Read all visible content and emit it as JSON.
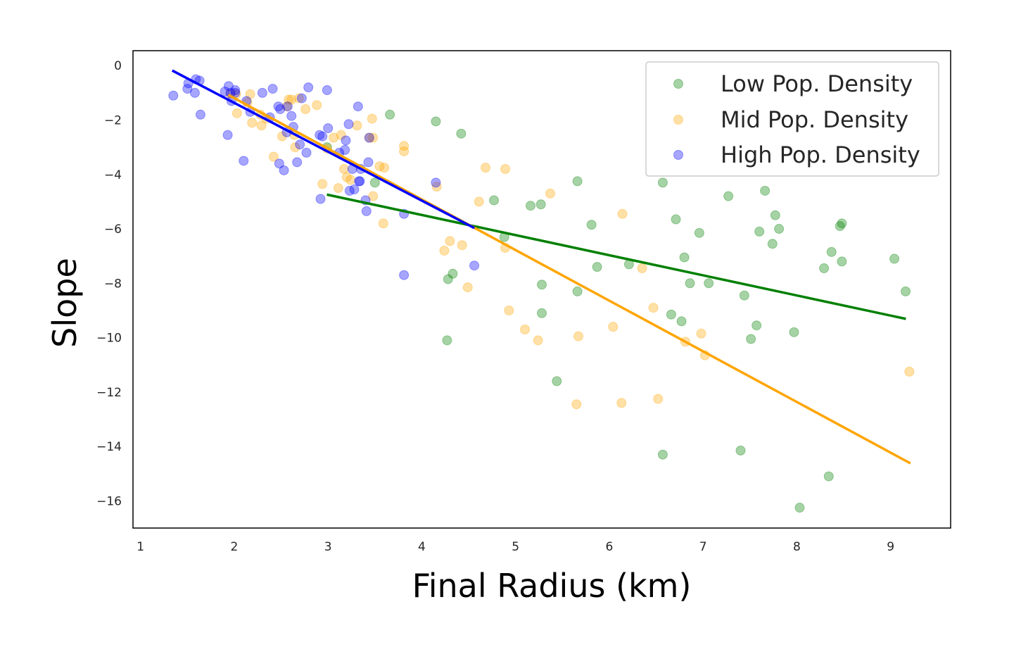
{
  "chart_data": {
    "type": "scatter",
    "xlabel": "Final Radius (km)",
    "ylabel": "Slope",
    "xlim": [
      0.92,
      9.64
    ],
    "ylim": [
      -17.0,
      0.55
    ],
    "x_ticks": [
      1,
      2,
      3,
      4,
      5,
      6,
      7,
      8,
      9
    ],
    "y_ticks": [
      0,
      -2,
      -4,
      -6,
      -8,
      -10,
      -12,
      -14,
      -16
    ],
    "x_tick_labels": [
      "1",
      "2",
      "3",
      "4",
      "5",
      "6",
      "7",
      "8",
      "9"
    ],
    "y_tick_labels": [
      "0",
      "−2",
      "−4",
      "−6",
      "−8",
      "−10",
      "−12",
      "−14",
      "−16"
    ],
    "grid": false,
    "legend_position": "top-right",
    "series": [
      {
        "name": "Low Pop. Density",
        "color": "#008000",
        "point_alpha": 0.35,
        "points": [
          [
            2.99,
            -3.0
          ],
          [
            3.5,
            -4.3
          ],
          [
            3.66,
            -1.8
          ],
          [
            4.15,
            -2.05
          ],
          [
            4.42,
            -2.5
          ],
          [
            4.28,
            -7.85
          ],
          [
            4.33,
            -7.65
          ],
          [
            4.27,
            -10.1
          ],
          [
            4.77,
            -4.95
          ],
          [
            4.88,
            -6.3
          ],
          [
            5.16,
            -5.15
          ],
          [
            5.27,
            -5.1
          ],
          [
            5.28,
            -8.05
          ],
          [
            5.28,
            -9.1
          ],
          [
            5.44,
            -11.6
          ],
          [
            5.66,
            -4.25
          ],
          [
            5.66,
            -8.3
          ],
          [
            5.81,
            -5.85
          ],
          [
            5.87,
            -7.4
          ],
          [
            6.21,
            -7.3
          ],
          [
            6.57,
            -4.3
          ],
          [
            6.66,
            -9.15
          ],
          [
            6.71,
            -5.65
          ],
          [
            6.77,
            -9.4
          ],
          [
            6.8,
            -7.05
          ],
          [
            6.86,
            -8.0
          ],
          [
            6.96,
            -6.15
          ],
          [
            7.06,
            -8.0
          ],
          [
            7.27,
            -4.8
          ],
          [
            7.4,
            -14.15
          ],
          [
            7.44,
            -8.45
          ],
          [
            7.51,
            -10.05
          ],
          [
            7.57,
            -9.55
          ],
          [
            7.6,
            -6.1
          ],
          [
            7.66,
            -4.6
          ],
          [
            7.74,
            -6.55
          ],
          [
            7.77,
            -5.5
          ],
          [
            7.81,
            -6.0
          ],
          [
            7.97,
            -9.8
          ],
          [
            8.03,
            -16.25
          ],
          [
            8.29,
            -7.45
          ],
          [
            8.34,
            -15.1
          ],
          [
            8.37,
            -6.85
          ],
          [
            8.46,
            -5.9
          ],
          [
            8.48,
            -5.8
          ],
          [
            8.48,
            -7.2
          ],
          [
            9.04,
            -7.1
          ],
          [
            9.16,
            -8.3
          ],
          [
            6.57,
            -14.3
          ]
        ],
        "fit": {
          "x": [
            3.0,
            9.15
          ],
          "y": [
            -4.75,
            -9.3
          ]
        }
      },
      {
        "name": "Mid Pop. Density",
        "color": "#ffa500",
        "point_alpha": 0.35,
        "points": [
          [
            1.96,
            -1.05
          ],
          [
            2.02,
            -1.05
          ],
          [
            2.03,
            -1.75
          ],
          [
            2.14,
            -1.35
          ],
          [
            2.17,
            -1.05
          ],
          [
            2.19,
            -2.1
          ],
          [
            2.28,
            -1.8
          ],
          [
            2.29,
            -2.2
          ],
          [
            2.34,
            -1.95
          ],
          [
            2.42,
            -3.35
          ],
          [
            2.51,
            -2.6
          ],
          [
            2.56,
            -1.5
          ],
          [
            2.58,
            -1.25
          ],
          [
            2.61,
            -1.25
          ],
          [
            2.64,
            -2.55
          ],
          [
            2.65,
            -3.0
          ],
          [
            2.69,
            -1.2
          ],
          [
            2.76,
            -1.6
          ],
          [
            2.88,
            -1.45
          ],
          [
            2.94,
            -4.35
          ],
          [
            2.99,
            -3.05
          ],
          [
            3.06,
            -2.65
          ],
          [
            3.11,
            -4.5
          ],
          [
            3.14,
            -2.55
          ],
          [
            3.17,
            -3.8
          ],
          [
            3.2,
            -4.1
          ],
          [
            3.24,
            -4.2
          ],
          [
            3.31,
            -2.2
          ],
          [
            3.44,
            -2.65
          ],
          [
            3.47,
            -1.95
          ],
          [
            3.48,
            -4.8
          ],
          [
            3.48,
            -2.65
          ],
          [
            3.55,
            -3.7
          ],
          [
            3.59,
            -5.8
          ],
          [
            3.6,
            -3.75
          ],
          [
            3.81,
            -2.95
          ],
          [
            3.81,
            -3.15
          ],
          [
            4.16,
            -4.45
          ],
          [
            4.24,
            -6.8
          ],
          [
            4.3,
            -6.45
          ],
          [
            4.43,
            -6.6
          ],
          [
            4.49,
            -8.15
          ],
          [
            4.61,
            -5.0
          ],
          [
            4.68,
            -3.75
          ],
          [
            4.89,
            -6.7
          ],
          [
            4.89,
            -3.8
          ],
          [
            4.93,
            -9.0
          ],
          [
            5.1,
            -9.7
          ],
          [
            5.24,
            -10.1
          ],
          [
            5.37,
            -4.7
          ],
          [
            5.65,
            -12.45
          ],
          [
            5.67,
            -9.95
          ],
          [
            6.04,
            -9.6
          ],
          [
            6.13,
            -12.4
          ],
          [
            6.14,
            -5.45
          ],
          [
            6.35,
            -7.45
          ],
          [
            6.47,
            -8.9
          ],
          [
            6.52,
            -12.25
          ],
          [
            6.81,
            -10.15
          ],
          [
            6.98,
            -9.85
          ],
          [
            7.02,
            -10.65
          ],
          [
            9.2,
            -11.25
          ]
        ],
        "fit": {
          "x": [
            1.95,
            9.2
          ],
          "y": [
            -1.1,
            -14.6
          ]
        }
      },
      {
        "name": "High Pop. Density",
        "color": "#0000ff",
        "point_alpha": 0.35,
        "points": [
          [
            1.35,
            -1.1
          ],
          [
            1.5,
            -0.85
          ],
          [
            1.51,
            -0.65
          ],
          [
            1.58,
            -1.0
          ],
          [
            1.59,
            -0.5
          ],
          [
            1.63,
            -0.55
          ],
          [
            1.64,
            -1.8
          ],
          [
            1.9,
            -0.95
          ],
          [
            1.93,
            -2.55
          ],
          [
            1.94,
            -0.75
          ],
          [
            1.96,
            -1.0
          ],
          [
            1.97,
            -1.3
          ],
          [
            2.01,
            -0.9
          ],
          [
            2.01,
            -1.0
          ],
          [
            2.1,
            -3.5
          ],
          [
            2.13,
            -1.3
          ],
          [
            2.17,
            -1.7
          ],
          [
            2.3,
            -1.0
          ],
          [
            2.38,
            -1.9
          ],
          [
            2.41,
            -0.85
          ],
          [
            2.47,
            -1.5
          ],
          [
            2.48,
            -3.6
          ],
          [
            2.49,
            -1.6
          ],
          [
            2.53,
            -3.85
          ],
          [
            2.56,
            -2.45
          ],
          [
            2.57,
            -1.5
          ],
          [
            2.61,
            -1.85
          ],
          [
            2.63,
            -2.25
          ],
          [
            2.67,
            -3.55
          ],
          [
            2.7,
            -2.9
          ],
          [
            2.72,
            -1.2
          ],
          [
            2.77,
            -3.2
          ],
          [
            2.79,
            -0.8
          ],
          [
            2.91,
            -2.55
          ],
          [
            2.92,
            -4.9
          ],
          [
            2.94,
            -2.6
          ],
          [
            2.99,
            -0.9
          ],
          [
            3.0,
            -2.3
          ],
          [
            3.12,
            -3.2
          ],
          [
            3.18,
            -3.1
          ],
          [
            3.19,
            -2.75
          ],
          [
            3.22,
            -2.15
          ],
          [
            3.23,
            -4.6
          ],
          [
            3.26,
            -3.8
          ],
          [
            3.28,
            -4.55
          ],
          [
            3.32,
            -1.5
          ],
          [
            3.33,
            -4.25
          ],
          [
            3.34,
            -4.25
          ],
          [
            3.35,
            -3.8
          ],
          [
            3.4,
            -4.95
          ],
          [
            3.41,
            -5.35
          ],
          [
            3.43,
            -3.55
          ],
          [
            3.44,
            -2.65
          ],
          [
            3.81,
            -5.45
          ],
          [
            3.81,
            -7.7
          ],
          [
            4.15,
            -4.3
          ],
          [
            4.56,
            -7.35
          ]
        ],
        "fit": {
          "x": [
            1.35,
            4.55
          ],
          "y": [
            -0.2,
            -5.95
          ]
        }
      }
    ]
  }
}
